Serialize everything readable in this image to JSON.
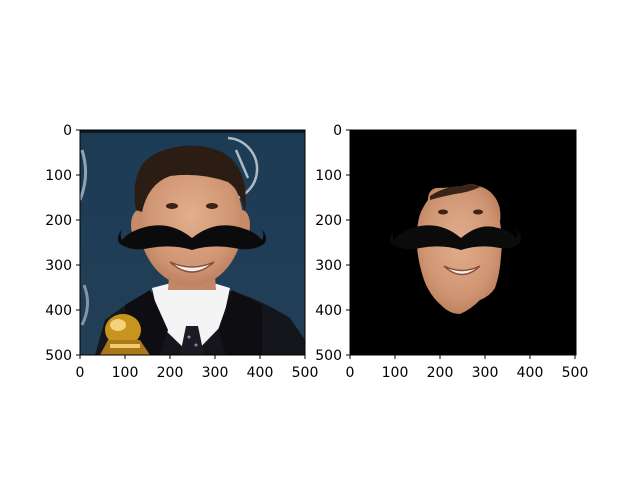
{
  "figure": {
    "background": "#ffffff",
    "panels": [
      {
        "name": "original-with-mustache",
        "content": "photo of smiling man in dark suit, white shirt and tie with a black mustache overlay; blue backdrop with a gramophone logo; gold trophy in lower-left",
        "x_ticks": [
          "0",
          "100",
          "200",
          "300",
          "400",
          "500"
        ],
        "y_ticks": [
          "0",
          "100",
          "200",
          "300",
          "400",
          "500"
        ]
      },
      {
        "name": "masked-face-with-mustache",
        "content": "only the face region visible with mustache overlay; everything else black",
        "x_ticks": [
          "0",
          "100",
          "200",
          "300",
          "400",
          "500"
        ],
        "y_ticks": [
          "0",
          "100",
          "200",
          "300",
          "400",
          "500"
        ]
      }
    ]
  },
  "colors": {
    "backdrop": "#1d3a52",
    "suit": "#15151c",
    "shirt": "#f4f4f4",
    "skin": "#d39a78",
    "hair": "#2b1c14",
    "mustache": "#0b0b0b",
    "mask": "#000000",
    "trophy": "#c8941e"
  }
}
